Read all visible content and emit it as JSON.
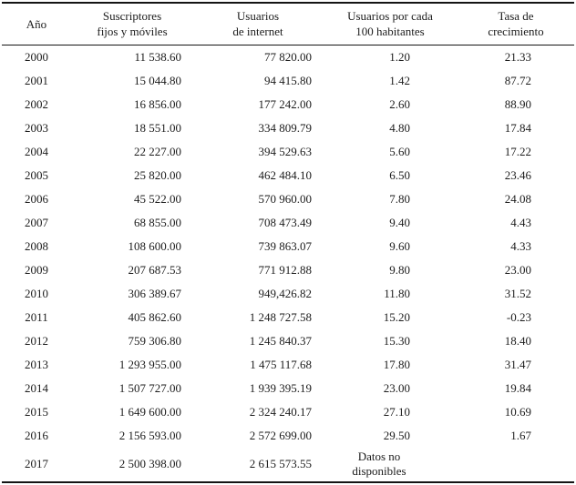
{
  "table": {
    "headers": [
      {
        "line1": "Año"
      },
      {
        "line1": "Suscriptores",
        "line2": "fijos y móviles"
      },
      {
        "line1": "Usuarios",
        "line2": "de internet"
      },
      {
        "line1": "Usuarios por cada",
        "line2": "100 habitantes"
      },
      {
        "line1": "Tasa de",
        "line2": "crecimiento"
      }
    ],
    "no_data_note": [
      "Datos no",
      "disponibles"
    ],
    "rows": [
      {
        "cells": [
          "2000",
          "11 538.60",
          "77 820.00",
          "1.20",
          "21.33"
        ]
      },
      {
        "cells": [
          "2001",
          "15 044.80",
          "94 415.80",
          "1.42",
          "87.72"
        ]
      },
      {
        "cells": [
          "2002",
          "16 856.00",
          "177 242.00",
          "2.60",
          "88.90"
        ]
      },
      {
        "cells": [
          "2003",
          "18 551.00",
          "334 809.79",
          "4.80",
          "17.84"
        ]
      },
      {
        "cells": [
          "2004",
          "22 227.00",
          "394 529.63",
          "5.60",
          "17.22"
        ]
      },
      {
        "cells": [
          "2005",
          "25 820.00",
          "462 484.10",
          "6.50",
          "23.46"
        ]
      },
      {
        "cells": [
          "2006",
          "45 522.00",
          "570 960.00",
          "7.80",
          "24.08"
        ]
      },
      {
        "cells": [
          "2007",
          "68 855.00",
          "708 473.49",
          "9.40",
          "4.43"
        ]
      },
      {
        "cells": [
          "2008",
          "108 600.00",
          "739 863.07",
          "9.60",
          "4.33"
        ]
      },
      {
        "cells": [
          "2009",
          "207 687.53",
          "771 912.88",
          "9.80",
          "23.00"
        ]
      },
      {
        "cells": [
          "2010",
          "306 389.67",
          "949,426.82",
          "11.80",
          "31.52"
        ]
      },
      {
        "cells": [
          "2011",
          "405 862.60",
          "1 248 727.58",
          "15.20",
          "-0.23"
        ]
      },
      {
        "cells": [
          "2012",
          "759 306.80",
          "1 245 840.37",
          "15.30",
          "18.40"
        ]
      },
      {
        "cells": [
          "2013",
          "1 293 955.00",
          "1 475 117.68",
          "17.80",
          "31.47"
        ]
      },
      {
        "cells": [
          "2014",
          "1 507 727.00",
          "1 939 395.19",
          "23.00",
          "19.84"
        ]
      },
      {
        "cells": [
          "2015",
          "1 649 600.00",
          "2 324 240.17",
          "27.10",
          "10.69"
        ]
      },
      {
        "cells": [
          "2016",
          "2 156 593.00",
          "2 572 699.00",
          "29.50",
          "1.67"
        ]
      },
      {
        "cells": [
          "2017",
          "2 500 398.00",
          "2 615 573.55",
          {
            "lines": [
              "Datos no",
              "disponibles"
            ]
          },
          ""
        ]
      }
    ]
  }
}
